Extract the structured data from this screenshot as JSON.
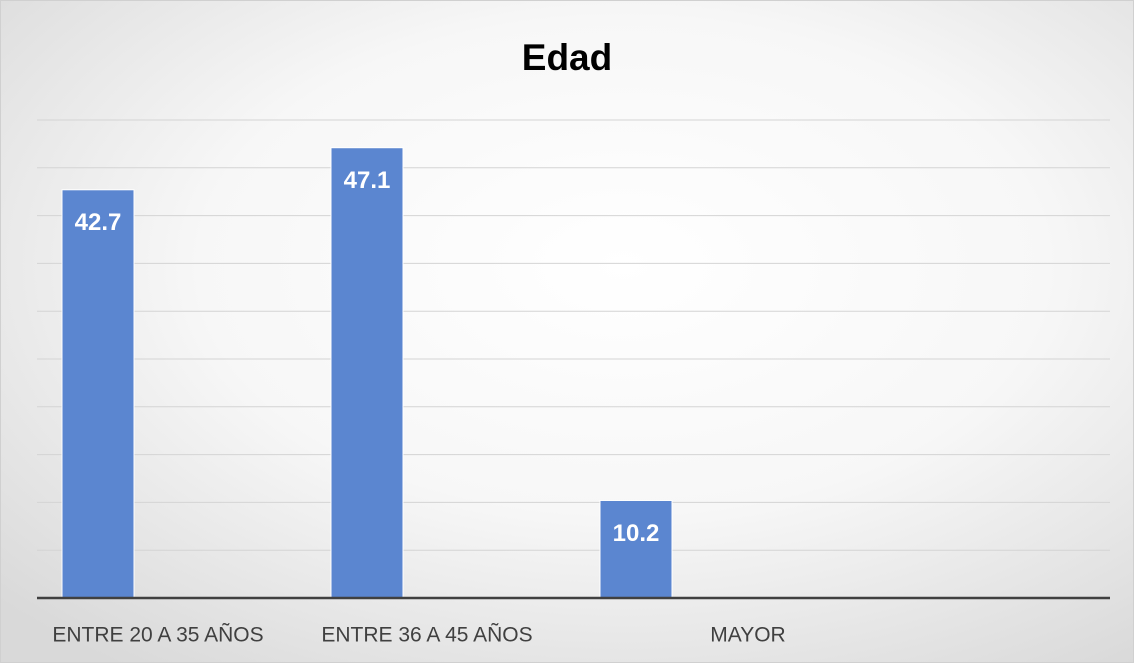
{
  "chart_data": {
    "type": "bar",
    "title": "Edad",
    "categories": [
      "ENTRE 20 A 35 AÑOS",
      "ENTRE 36 A 45 AÑOS",
      "MAYOR",
      null
    ],
    "values": [
      42.7,
      47.1,
      10.2,
      null
    ],
    "color": "#5b86d0",
    "ylim": [
      0,
      50
    ],
    "yticks": [
      0,
      5,
      10,
      15,
      20,
      25,
      30,
      35,
      40,
      45,
      50
    ],
    "grid": true
  }
}
